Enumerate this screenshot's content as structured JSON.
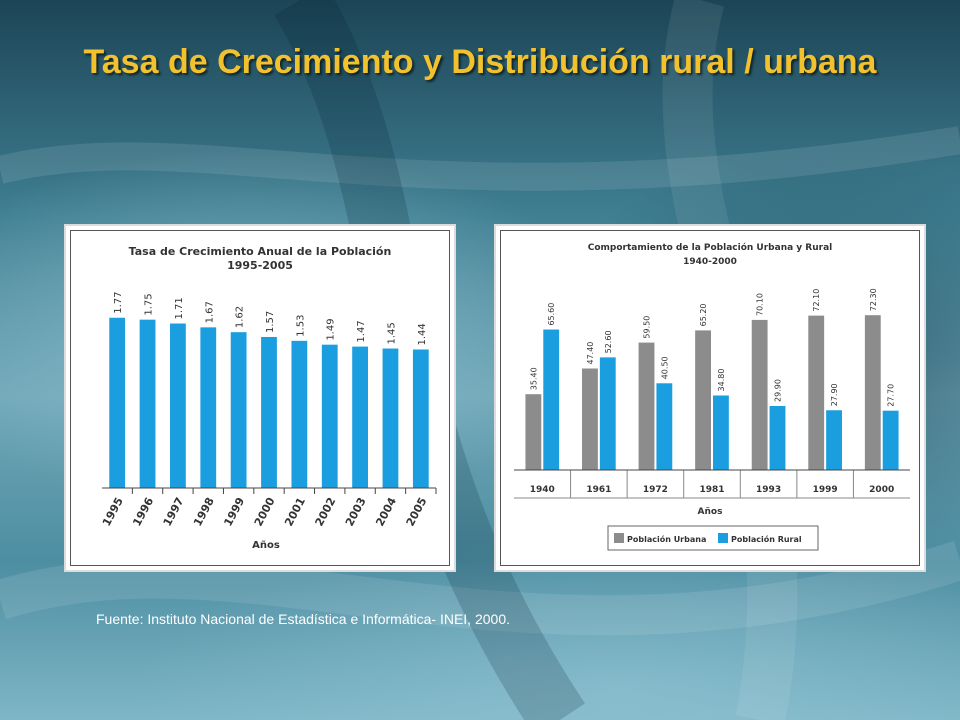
{
  "slide": {
    "title": "Tasa de Crecimiento y Distribución rural / urbana",
    "source": "Fuente: Instituto Nacional de Estadística e Informática- INEI, 2000."
  },
  "colors": {
    "title": "#f2c12e",
    "blue": "#1a9ee0",
    "gray": "#8c8c8c"
  },
  "chart_data": [
    {
      "type": "bar",
      "title": "Tasa de Crecimiento Anual de la Población",
      "subtitle": "1995-2005",
      "xlabel": "Años",
      "ylabel": "",
      "ylim": [
        0,
        2.1
      ],
      "grid": false,
      "categories": [
        "1995",
        "1996",
        "1997",
        "1998",
        "1999",
        "2000",
        "2001",
        "2002",
        "2003",
        "2004",
        "2005"
      ],
      "series": [
        {
          "values": [
            1.77,
            1.75,
            1.71,
            1.67,
            1.62,
            1.57,
            1.53,
            1.49,
            1.47,
            1.45,
            1.44
          ],
          "labels": [
            "1.77",
            "1.75",
            "1.71",
            "1.67",
            "1.62",
            "1.57",
            "1.53",
            "1.49",
            "1.47",
            "1.45",
            "1.44"
          ]
        }
      ]
    },
    {
      "type": "bar",
      "title": "Comportamiento de la Población Urbana y Rural",
      "subtitle": "1940-2000",
      "xlabel": "Años",
      "ylabel": "",
      "ylim": [
        0,
        85
      ],
      "grid": false,
      "legend": "bottom",
      "categories": [
        "1940",
        "1961",
        "1972",
        "1981",
        "1993",
        "1999",
        "2000"
      ],
      "series": [
        {
          "name": "Población Urbana",
          "color": "#8c8c8c",
          "values": [
            35.4,
            47.4,
            59.5,
            65.2,
            70.1,
            72.1,
            72.3
          ],
          "labels": [
            "35.40",
            "47.40",
            "59.50",
            "65.20",
            "70.10",
            "72.10",
            "72.30"
          ]
        },
        {
          "name": "Población Rural",
          "color": "#1a9ee0",
          "values": [
            65.6,
            52.6,
            40.5,
            34.8,
            29.9,
            27.9,
            27.7
          ],
          "labels": [
            "65.60",
            "52.60",
            "40.50",
            "34.80",
            "29.90",
            "27.90",
            "27.70"
          ]
        }
      ]
    }
  ]
}
